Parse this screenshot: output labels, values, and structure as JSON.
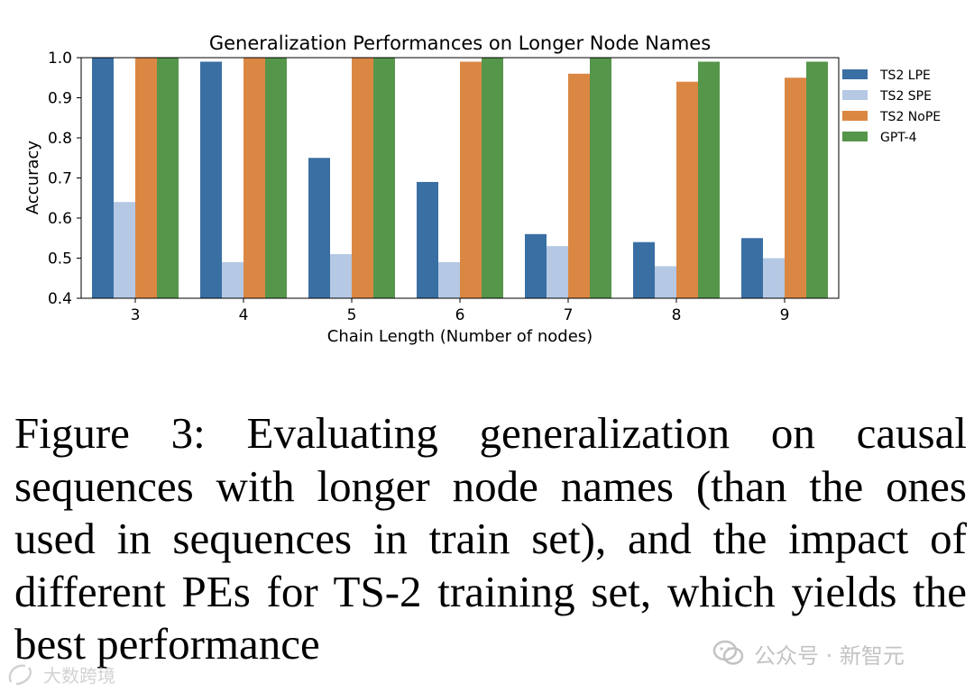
{
  "chart_data": {
    "type": "bar",
    "title": "Generalization Performances on Longer Node Names",
    "xlabel": "Chain Length (Number of nodes)",
    "ylabel": "Accuracy",
    "ylim": [
      0.4,
      1.0
    ],
    "yticks": [
      "0.4",
      "0.5",
      "0.6",
      "0.7",
      "0.8",
      "0.9",
      "1.0"
    ],
    "categories": [
      "3",
      "4",
      "5",
      "6",
      "7",
      "8",
      "9"
    ],
    "legend_position": "outside-right-top",
    "series": [
      {
        "name": "TS2 LPE",
        "color": "#3a6fa3",
        "values": [
          1.0,
          0.99,
          0.75,
          0.69,
          0.56,
          0.54,
          0.55
        ]
      },
      {
        "name": "TS2 SPE",
        "color": "#b5c8e4",
        "values": [
          0.64,
          0.49,
          0.51,
          0.49,
          0.53,
          0.48,
          0.5
        ]
      },
      {
        "name": "TS2 NoPE",
        "color": "#db8744",
        "values": [
          1.0,
          1.0,
          1.0,
          0.99,
          0.96,
          0.94,
          0.95
        ]
      },
      {
        "name": "GPT-4",
        "color": "#55964b",
        "values": [
          1.0,
          1.0,
          1.0,
          1.0,
          1.0,
          0.99,
          0.99
        ]
      }
    ]
  },
  "caption": "Figure 3: Evaluating generalization on causal sequences with longer node names (than the ones used in sequences in train set), and the impact of different PEs for TS-2 training set, which yields the best performance",
  "watermarks": {
    "right": "公众号 · 新智元",
    "left": "大数跨境"
  }
}
